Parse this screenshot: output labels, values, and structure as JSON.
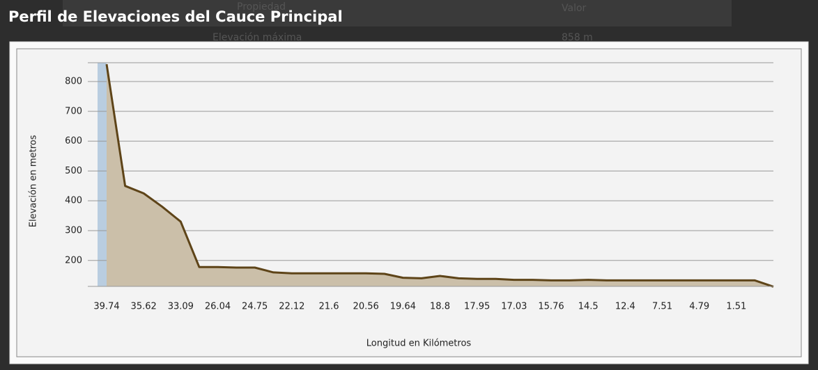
{
  "background_table": {
    "header": [
      "Propiedad",
      "Valor"
    ],
    "rows": [
      [
        "Elevación máxima",
        "858 m"
      ]
    ]
  },
  "chart_data": {
    "type": "area",
    "title": "Perfil de Elevaciones del Cauce Principal",
    "y_label": "Elevación en metros",
    "x_label": "Longitud en Kilómetros",
    "categories": [
      "39.74",
      null,
      "35.62",
      null,
      "33.09",
      null,
      "26.04",
      null,
      "24.75",
      null,
      "22.12",
      null,
      "21.6",
      null,
      "20.56",
      null,
      "19.64",
      null,
      "18.8",
      null,
      "17.95",
      null,
      "17.03",
      null,
      "15.76",
      null,
      "14.5",
      null,
      "12.4",
      null,
      "7.51",
      null,
      "4.79",
      null,
      "1.51",
      null,
      null
    ],
    "values": [
      858,
      450,
      425,
      380,
      330,
      178,
      178,
      176,
      176,
      160,
      157,
      157,
      157,
      157,
      157,
      155,
      142,
      140,
      148,
      140,
      138,
      138,
      135,
      135,
      133,
      133,
      135,
      133,
      133,
      133,
      133,
      133,
      133,
      133,
      133,
      133,
      112
    ],
    "line_color": "#5e4418",
    "fill_color": "#cbbfa9",
    "ylim": [
      113,
      863
    ],
    "yticks": [
      200,
      300,
      400,
      500,
      600,
      700,
      800
    ],
    "grid": true
  }
}
